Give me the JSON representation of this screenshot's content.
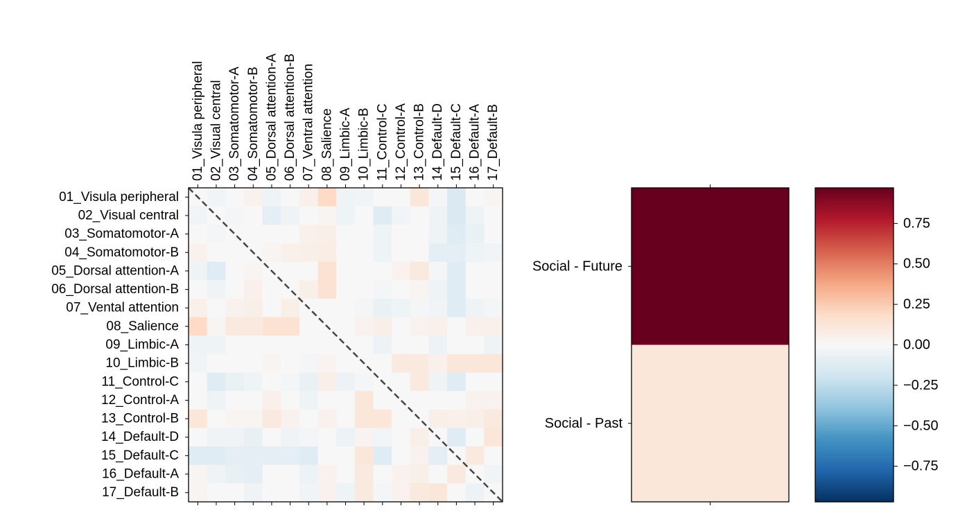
{
  "chart_data": [
    {
      "type": "heatmap",
      "title": "",
      "labels": [
        "01_Visula peripheral",
        "02_Visual central",
        "03_Somatomotor-A",
        "04_Somatomotor-B",
        "05_Dorsal attention-A",
        "06_Dorsal attention-B",
        "07_Ventral attention",
        "08_Salience",
        "09_Limbic-A",
        "10_Limbic-B",
        "11_Control-C",
        "12_Control-A",
        "13_Control-B",
        "14_Default-D",
        "15_Default-C",
        "16_Default-A",
        "17_Default-B"
      ],
      "row_labels": [
        "01_Visula peripheral",
        "02_Visual central",
        "03_Somatomotor-A",
        "04_Somatomotor-B",
        "05_Dorsal attention-A",
        "06_Dorsal attention-B",
        "07_Vental attention",
        "08_Salience",
        "09_Limbic-A",
        "10_Limbic-B",
        "11_Control-C",
        "12_Control-A",
        "13_Control-B",
        "14_Default-D",
        "15_Default-C",
        "16_Default-A",
        "17_Default-B"
      ],
      "matrix": [
        [
          0.0,
          -0.03,
          0.0,
          0.04,
          -0.05,
          0.0,
          0.05,
          0.2,
          -0.05,
          -0.03,
          0.0,
          0.0,
          0.12,
          -0.02,
          -0.15,
          0.0,
          0.02
        ],
        [
          -0.03,
          0.0,
          -0.02,
          0.0,
          -0.1,
          -0.04,
          0.0,
          0.02,
          -0.05,
          0.0,
          -0.12,
          -0.03,
          0.0,
          -0.05,
          -0.15,
          -0.05,
          0.0
        ],
        [
          0.0,
          -0.02,
          0.0,
          0.0,
          0.0,
          0.0,
          0.05,
          0.06,
          0.0,
          0.0,
          -0.05,
          0.0,
          0.0,
          -0.05,
          -0.12,
          -0.07,
          0.0
        ],
        [
          0.04,
          0.0,
          0.0,
          0.0,
          0.02,
          0.05,
          0.06,
          0.07,
          0.0,
          0.0,
          -0.05,
          0.0,
          0.0,
          -0.1,
          -0.1,
          -0.05,
          -0.03
        ],
        [
          -0.05,
          -0.12,
          0.0,
          0.02,
          0.0,
          0.0,
          0.0,
          0.15,
          0.0,
          0.0,
          0.0,
          0.04,
          0.1,
          -0.02,
          -0.12,
          0.0,
          0.0
        ],
        [
          0.0,
          -0.04,
          0.0,
          0.05,
          0.0,
          0.0,
          0.06,
          0.15,
          0.0,
          0.0,
          -0.02,
          0.0,
          0.02,
          -0.05,
          -0.12,
          0.0,
          0.0
        ],
        [
          0.05,
          0.0,
          0.04,
          0.06,
          0.0,
          0.06,
          0.0,
          0.0,
          0.0,
          -0.02,
          -0.07,
          -0.05,
          -0.02,
          -0.03,
          -0.12,
          -0.05,
          -0.02
        ],
        [
          0.2,
          0.02,
          0.1,
          0.1,
          0.15,
          0.15,
          0.0,
          0.0,
          0.0,
          0.04,
          0.06,
          0.0,
          0.04,
          0.05,
          0.0,
          0.05,
          0.05
        ],
        [
          -0.05,
          -0.05,
          0.0,
          0.0,
          0.0,
          0.0,
          0.0,
          0.0,
          0.0,
          0.0,
          -0.06,
          0.0,
          0.0,
          -0.06,
          0.0,
          0.0,
          -0.05
        ],
        [
          -0.03,
          0.0,
          0.0,
          0.0,
          0.02,
          0.0,
          -0.02,
          0.03,
          0.0,
          0.0,
          0.0,
          0.1,
          0.1,
          0.05,
          0.12,
          0.12,
          0.12
        ],
        [
          0.0,
          -0.12,
          -0.07,
          -0.05,
          0.0,
          -0.02,
          -0.07,
          0.06,
          -0.06,
          -0.02,
          0.0,
          0.0,
          0.1,
          -0.04,
          -0.12,
          0.0,
          0.0
        ],
        [
          0.0,
          -0.05,
          0.0,
          0.0,
          0.05,
          0.0,
          -0.05,
          0.0,
          0.0,
          0.12,
          0.0,
          0.0,
          0.0,
          0.0,
          0.0,
          0.04,
          0.04
        ],
        [
          0.12,
          0.0,
          0.02,
          0.02,
          0.1,
          0.04,
          0.0,
          0.04,
          0.0,
          0.12,
          0.12,
          0.0,
          0.0,
          0.06,
          0.05,
          0.06,
          0.1
        ],
        [
          0.0,
          -0.04,
          -0.04,
          -0.08,
          0.0,
          -0.04,
          -0.02,
          0.0,
          -0.06,
          0.03,
          -0.03,
          0.0,
          0.06,
          0.0,
          -0.12,
          0.0,
          0.12
        ],
        [
          -0.12,
          -0.12,
          -0.1,
          -0.1,
          -0.1,
          -0.1,
          -0.12,
          0.0,
          0.0,
          0.12,
          -0.12,
          0.0,
          0.04,
          -0.1,
          0.0,
          0.1,
          0.0
        ],
        [
          0.02,
          -0.04,
          -0.08,
          -0.1,
          0.0,
          0.0,
          -0.06,
          0.04,
          0.0,
          0.1,
          0.0,
          0.04,
          0.06,
          0.0,
          0.1,
          0.0,
          -0.03
        ],
        [
          0.02,
          0.0,
          0.0,
          -0.04,
          0.0,
          0.0,
          -0.03,
          0.04,
          -0.05,
          0.1,
          -0.02,
          0.04,
          0.1,
          0.12,
          0.0,
          -0.06,
          0.0
        ]
      ],
      "diagonal_line": "dashed",
      "vmin": -1,
      "vmax": 1
    },
    {
      "type": "heatmap",
      "rows": [
        "Social - Future",
        "Social - Past"
      ],
      "values": [
        1.0,
        0.12
      ],
      "vmin": -1,
      "vmax": 1
    }
  ],
  "colorbar": {
    "ticks": [
      "0.75",
      "0.50",
      "0.25",
      "0.00",
      "−0.25",
      "−0.50",
      "−0.75"
    ],
    "tick_values": [
      0.75,
      0.5,
      0.25,
      0.0,
      -0.25,
      -0.5,
      -0.75
    ],
    "range": [
      -0.97,
      0.97
    ],
    "colormap": "RdBu_r"
  },
  "colors": {
    "diagonal": "#444444",
    "frame": "#000000"
  }
}
